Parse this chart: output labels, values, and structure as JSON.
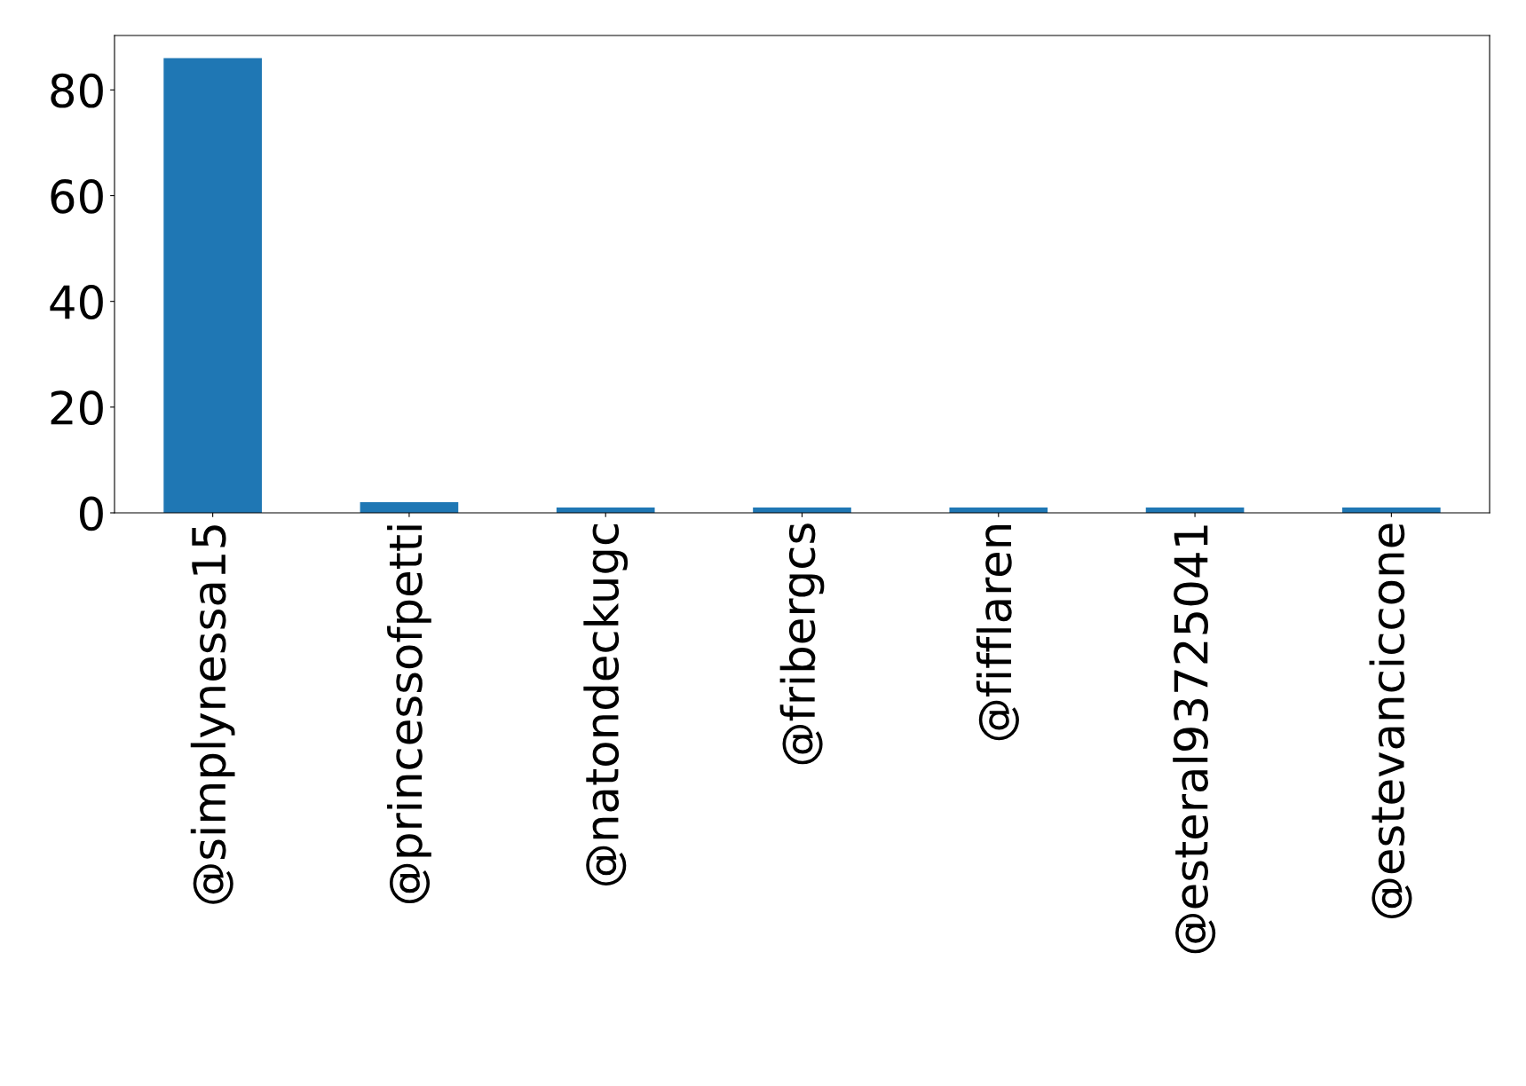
{
  "chart_data": {
    "type": "bar",
    "categories": [
      "@simplynessa15",
      "@princessofpetti",
      "@natondeckugc",
      "@fribergcs",
      "@fifflaren",
      "@esteral93725041",
      "@estevanciccone"
    ],
    "values": [
      86,
      2,
      1,
      1,
      1,
      1,
      1
    ],
    "color": "#1f77b4",
    "ylim": [
      0,
      90.3
    ],
    "yticks": [
      0,
      20,
      40,
      60,
      80
    ],
    "grid": false,
    "legend": false
  }
}
